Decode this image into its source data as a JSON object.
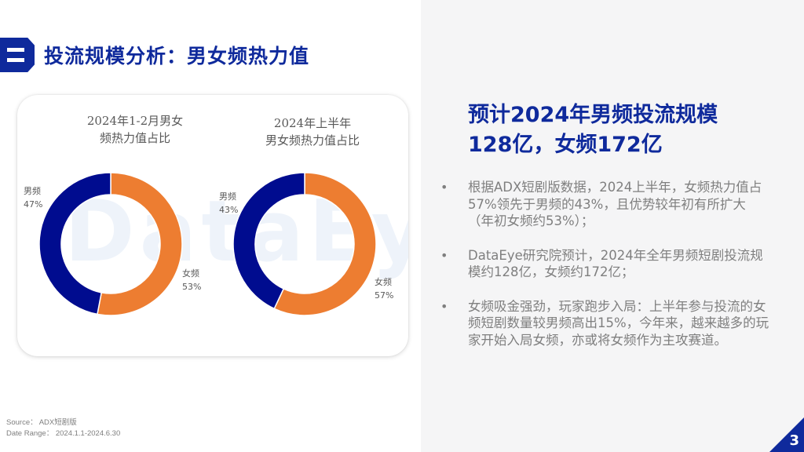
{
  "header": {
    "badge_icon": "section-two-badge",
    "title": "投流规模分析：男女频热力值"
  },
  "colors": {
    "brand": "#0f2a9c",
    "male": "#000c8f",
    "female": "#ed7d31",
    "panel_bg": "#f5f5f6"
  },
  "watermark": "DataEye",
  "charts": [
    {
      "title_line1": "2024年1-2月男女",
      "title_line2": "频热力值占比",
      "male_label": "男频",
      "male_pct": "47%",
      "female_label": "女频",
      "female_pct": "53%"
    },
    {
      "title_line1": "2024年上半年",
      "title_line2": "男女频热力值占比",
      "male_label": "男频",
      "male_pct": "43%",
      "female_label": "女频",
      "female_pct": "57%"
    }
  ],
  "chart_data": [
    {
      "type": "pie",
      "variant": "donut",
      "title": "2024年1-2月男女频热力值占比",
      "categories": [
        "女频",
        "男频"
      ],
      "values": [
        53,
        47
      ],
      "unit": "%",
      "colors": [
        "#ed7d31",
        "#000c8f"
      ],
      "start_angle_deg": 0,
      "direction": "clockwise",
      "legend": "none (data labels outside)"
    },
    {
      "type": "pie",
      "variant": "donut",
      "title": "2024年上半年男女频热力值占比",
      "categories": [
        "女频",
        "男频"
      ],
      "values": [
        57,
        43
      ],
      "unit": "%",
      "colors": [
        "#ed7d31",
        "#000c8f"
      ],
      "start_angle_deg": 0,
      "direction": "clockwise",
      "legend": "none (data labels outside)"
    }
  ],
  "summary": {
    "title_line1": "预计2024年男频投流规模",
    "title_line2": "128亿，女频172亿",
    "bullets": [
      "根据ADX短剧版数据，2024上半年，女频热力值占57%领先于男频的43%，且优势较年初有所扩大（年初女频约53%）；",
      "DataEye研究院预计，2024年全年男频短剧投流规模约128亿，女频约172亿；",
      "女频吸金强劲，玩家跑步入局：上半年参与投流的女频短剧数量较男频高出15%，今年来，越来越多的玩家开始入局女频，亦或将女频作为主攻赛道。"
    ],
    "bullet_symbol": "•"
  },
  "footer": {
    "source": "Source： ADX短剧版",
    "date_range": "Date Range： 2024.1.1-2024.6.30",
    "page_number": "3"
  }
}
